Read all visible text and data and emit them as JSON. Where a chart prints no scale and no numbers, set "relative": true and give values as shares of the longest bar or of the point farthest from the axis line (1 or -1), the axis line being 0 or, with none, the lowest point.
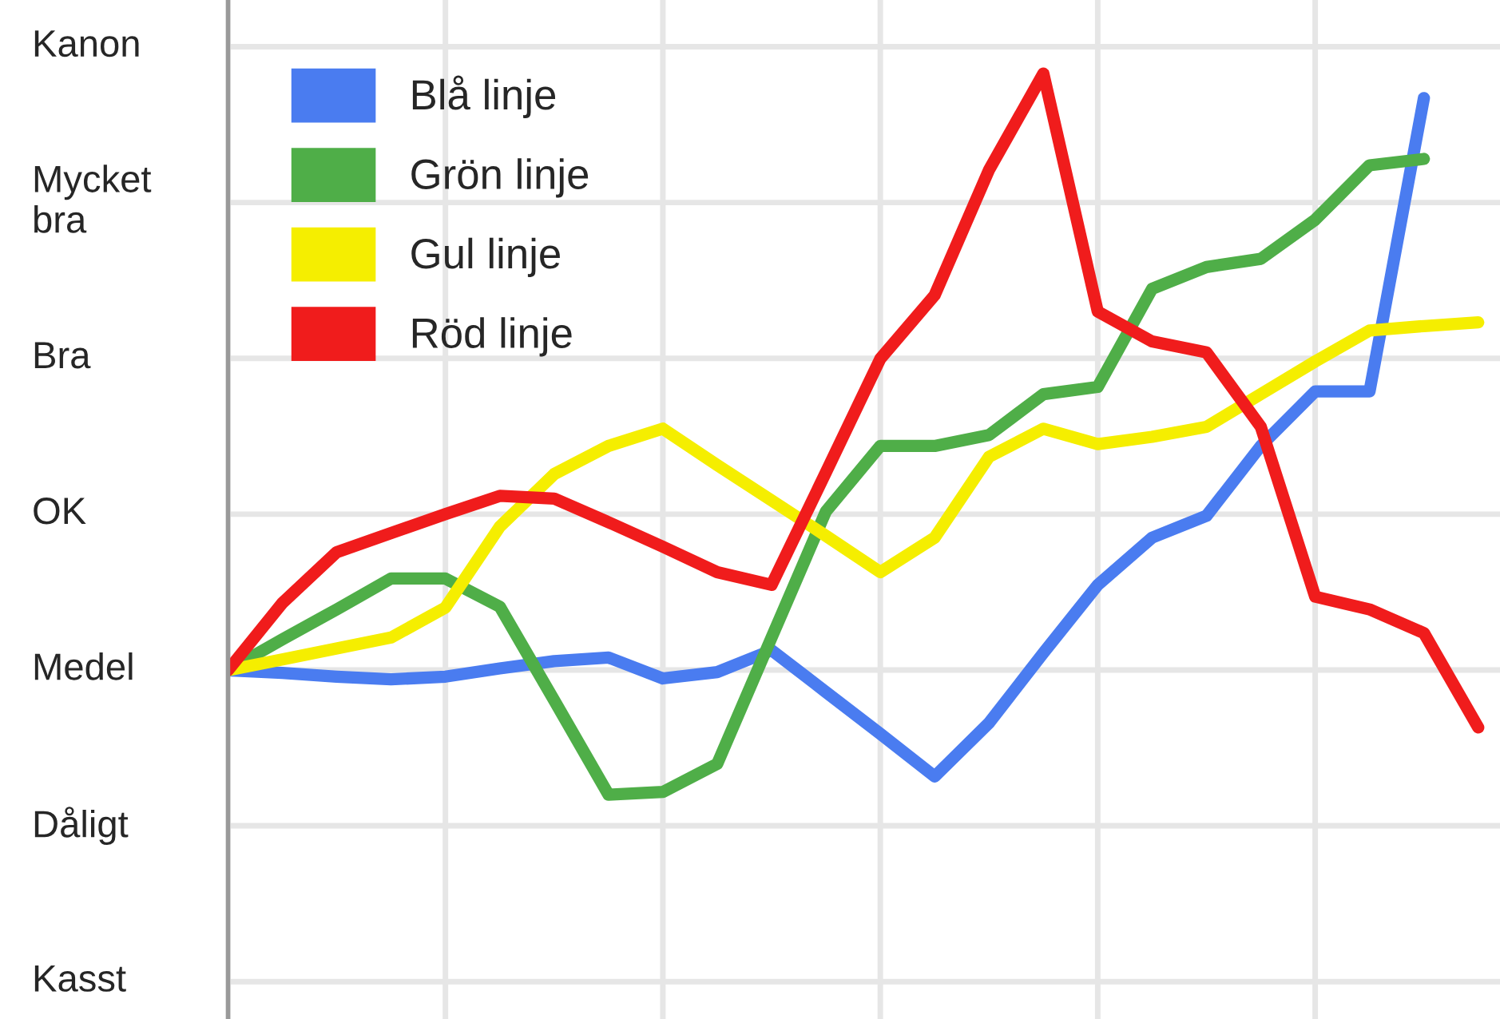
{
  "chart_data": {
    "type": "line",
    "relative": true,
    "categories": [
      null,
      null,
      null,
      null,
      null,
      null,
      null,
      null,
      null,
      null,
      null,
      null,
      null,
      null,
      null,
      null,
      null,
      null,
      null,
      null,
      null,
      null,
      null,
      null
    ],
    "annotations": [
      "Kanon",
      "Mycket\nbra",
      "Bra",
      "OK",
      "Medel",
      "Dåligt",
      "Kasst"
    ],
    "grid": true,
    "legend": "top left",
    "marker": "none",
    "line_style": "solid",
    "series": [
      {
        "name": "Blå linje",
        "color": "#4a7cf0",
        "values": [
          0.343,
          0.34,
          0.336,
          0.333,
          0.336,
          0.345,
          0.353,
          0.357,
          0.334,
          0.341,
          0.365,
          0.319,
          0.273,
          0.226,
          0.285,
          0.362,
          0.437,
          0.489,
          0.513,
          0.59,
          0.65,
          0.65,
          0.973,
          null
        ]
      },
      {
        "name": "Grön linje",
        "color": "#4fae48",
        "values": [
          0.343,
          0.377,
          0.41,
          0.444,
          0.444,
          0.413,
          0.31,
          0.206,
          0.209,
          0.24,
          0.379,
          0.518,
          0.59,
          0.59,
          0.602,
          0.647,
          0.655,
          0.763,
          0.787,
          0.796,
          0.839,
          0.899,
          0.906,
          null
        ]
      },
      {
        "name": "Gul linje",
        "color": "#f5ee00",
        "values": [
          0.343,
          0.355,
          0.367,
          0.379,
          0.412,
          0.501,
          0.559,
          0.59,
          0.609,
          0.569,
          0.53,
          0.491,
          0.451,
          0.489,
          0.578,
          0.609,
          0.592,
          0.6,
          0.611,
          0.647,
          0.683,
          0.717,
          0.722,
          0.726
        ]
      },
      {
        "name": "Röd linje",
        "color": "#f01c1c",
        "values": [
          0.343,
          0.417,
          0.473,
          0.494,
          0.515,
          0.535,
          0.532,
          0.506,
          0.479,
          0.451,
          0.437,
          0.561,
          0.686,
          0.756,
          0.894,
          1,
          0.738,
          0.705,
          0.693,
          0.611,
          0.424,
          0.41,
          0.384,
          0.28
        ]
      }
    ]
  }
}
